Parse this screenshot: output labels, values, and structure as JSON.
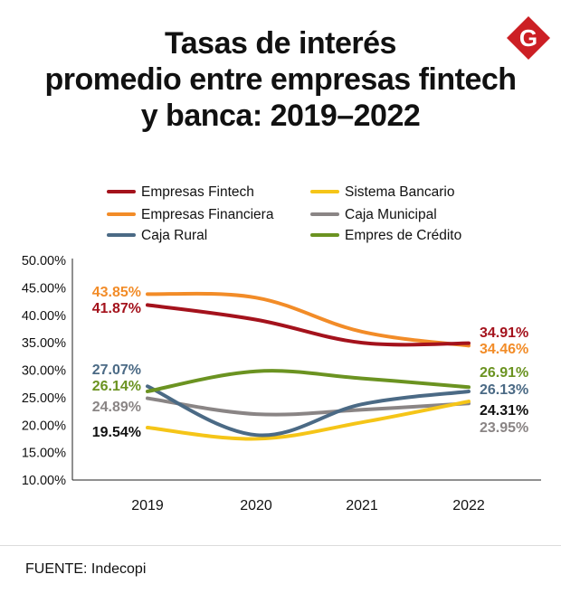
{
  "header": {
    "title_lines": [
      "Tasas de interés",
      "promedio entre empresas fintech",
      "y banca: 2019–2022"
    ],
    "logo_letter": "G",
    "logo_color": "#cc1f24"
  },
  "source": "FUENTE: Indecopi",
  "chart_data": {
    "type": "line",
    "title": "Tasas de interés promedio entre empresas fintech y banca: 2019–2022",
    "xlabel": "",
    "ylabel": "",
    "categories": [
      "2019",
      "2020",
      "2021",
      "2022"
    ],
    "ylim": [
      10,
      50
    ],
    "yticks": [
      "10.00%",
      "15.00%",
      "20.00%",
      "25.00%",
      "30.00%",
      "35.00%",
      "40.00%",
      "45.00%",
      "50.00%"
    ],
    "legend_position": "top",
    "series": [
      {
        "name": "Empresas Fintech",
        "color": "#a4121c",
        "label_color": "#a4121c",
        "values": [
          41.87,
          39.2,
          35.0,
          34.91
        ],
        "start_label": "41.87%",
        "end_label": "34.91%"
      },
      {
        "name": "Sistema Bancario",
        "color": "#f5c518",
        "label_color": "#111111",
        "values": [
          19.54,
          17.5,
          20.5,
          24.31
        ],
        "start_label": "19.54%",
        "end_label": "24.31%"
      },
      {
        "name": "Empresas Financiera",
        "color": "#f28c28",
        "label_color": "#f28c28",
        "values": [
          43.85,
          43.2,
          37.0,
          34.46
        ],
        "start_label": "43.85%",
        "end_label": "34.46%"
      },
      {
        "name": "Caja Municipal",
        "color": "#8a8585",
        "label_color": "#8a8585",
        "values": [
          24.89,
          22.0,
          22.8,
          23.95
        ],
        "start_label": "24.89%",
        "end_label": "23.95%"
      },
      {
        "name": "Caja Rural",
        "color": "#4b6a85",
        "label_color": "#4b6a85",
        "values": [
          27.07,
          18.2,
          23.8,
          26.13
        ],
        "start_label": "27.07%",
        "end_label": "26.13%"
      },
      {
        "name": "Empres de Crédito",
        "color": "#6b9321",
        "label_color": "#6b9321",
        "values": [
          26.14,
          29.8,
          28.5,
          26.91
        ],
        "start_label": "26.14%",
        "end_label": "26.91%"
      }
    ]
  }
}
